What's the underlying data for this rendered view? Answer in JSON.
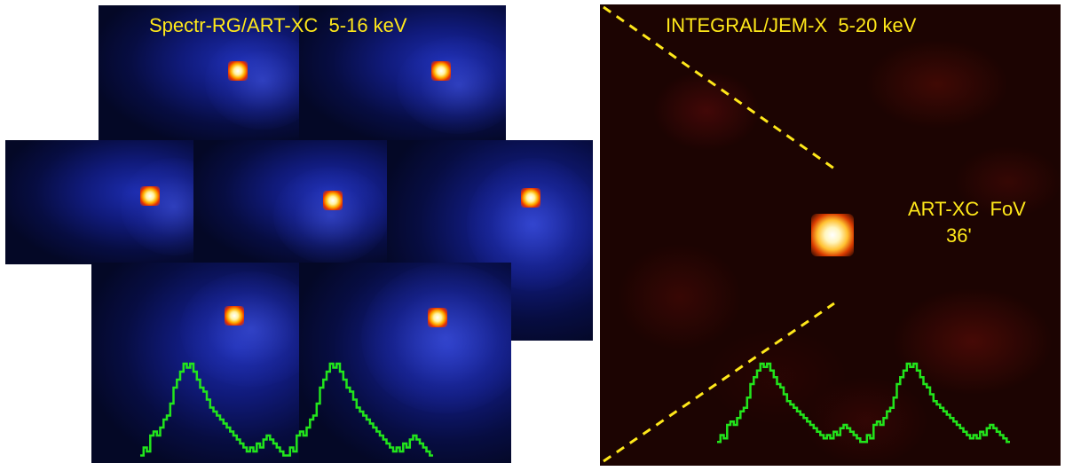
{
  "artxc_label": "Spectr-RG/ART-XC  5-16 keV",
  "jemx_label": "INTEGRAL/JEM-X  5-20 keV",
  "fov_label_line1": "ART-XC  FoV",
  "fov_label_line2": "36'",
  "colors": {
    "label_text": "#ffe81a",
    "profile_line": "#22e51c",
    "fov_lines": "#ffe81a",
    "artxc_background": "#0b1462",
    "jemx_background": "#1c0402"
  },
  "profile_shape": [
    1,
    3,
    2,
    6,
    7,
    6,
    8,
    10,
    11,
    14,
    18,
    20,
    22,
    24,
    23,
    24,
    22,
    20,
    18,
    17,
    15,
    13,
    12,
    11,
    10,
    9,
    8,
    7,
    6,
    5,
    4,
    3,
    2,
    3,
    2,
    4,
    3,
    5,
    6,
    5,
    4,
    3,
    2,
    1
  ],
  "artxc_profile": [
    0,
    1,
    2,
    3,
    4,
    5,
    6,
    7,
    6,
    5,
    4,
    3,
    2,
    1,
    0,
    1,
    2,
    3,
    4,
    5,
    6,
    7,
    6,
    5,
    4,
    3,
    2,
    1,
    0,
    1,
    2,
    3,
    4,
    5,
    6,
    7,
    6,
    5,
    4,
    3,
    2,
    1,
    0,
    1,
    2,
    3,
    4,
    5,
    6,
    7,
    6,
    5,
    4,
    3,
    2,
    1,
    0
  ]
}
